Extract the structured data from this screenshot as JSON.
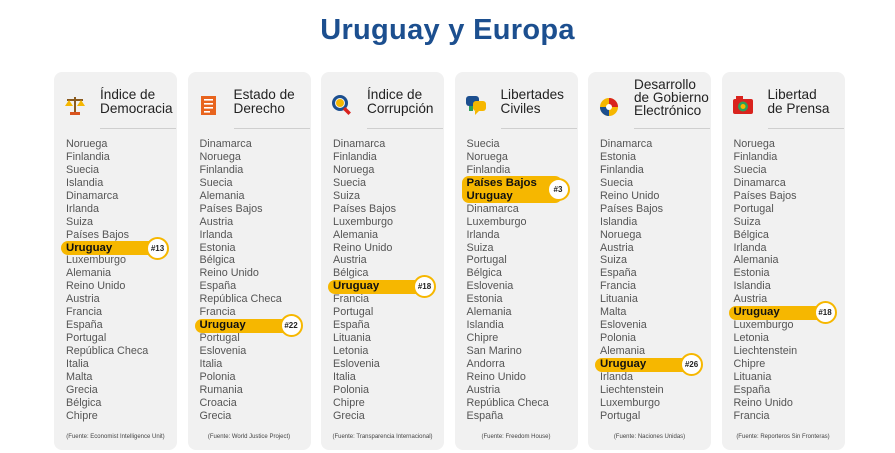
{
  "title": "Uruguay y Europa",
  "colors": {
    "title": "#1c4f8f",
    "highlight": "#f6b700",
    "card": "#f1f1f1"
  },
  "chart_data": {
    "type": "table",
    "title": "Uruguay y Europa",
    "columns": [
      {
        "heading": [
          "Índice de",
          "Democracia"
        ],
        "icon": "scale-icon",
        "rank": 13,
        "rank_label": "#13",
        "highlight": [
          "Uruguay"
        ],
        "items": [
          "Noruega",
          "Finlandia",
          "Suecia",
          "Islandia",
          "Dinamarca",
          "Irlanda",
          "Suiza",
          "Países Bajos",
          "Uruguay",
          "Luxemburgo",
          "Alemania",
          "Reino Unido",
          "Austria",
          "Francia",
          "España",
          "Portugal",
          "República Checa",
          "Italia",
          "Malta",
          "Grecia",
          "Bélgica",
          "Chipre"
        ],
        "source": "(Fuente: Economist Intelligence Unit)"
      },
      {
        "heading": [
          "Estado de",
          "Derecho"
        ],
        "icon": "document-icon",
        "rank": 22,
        "rank_label": "#22",
        "highlight": [
          "Uruguay"
        ],
        "items": [
          "Dinamarca",
          "Noruega",
          "Finlandia",
          "Suecia",
          "Alemania",
          "Países Bajos",
          "Austria",
          "Irlanda",
          "Estonia",
          "Bélgica",
          "Reino Unido",
          "España",
          "República Checa",
          "Francia",
          "Uruguay",
          "Portugal",
          "Eslovenia",
          "Italia",
          "Polonia",
          "Rumania",
          "Croacia",
          "Grecia"
        ],
        "source": "(Fuente: World Justice Project)"
      },
      {
        "heading": [
          "Índice de",
          "Corrupción"
        ],
        "icon": "magnifier-icon",
        "rank": 18,
        "rank_label": "#18",
        "highlight": [
          "Uruguay"
        ],
        "items": [
          "Dinamarca",
          "Finlandia",
          "Noruega",
          "Suecia",
          "Suiza",
          "Países Bajos",
          "Luxemburgo",
          "Alemania",
          "Reino Unido",
          "Austria",
          "Bélgica",
          "Uruguay",
          "Francia",
          "Portugal",
          "España",
          "Lituania",
          "Letonia",
          "Eslovenia",
          "Italia",
          "Polonia",
          "Chipre",
          "Grecia"
        ],
        "source": "(Fuente: Transparencia Internacional)"
      },
      {
        "heading": [
          "Libertades",
          "Civiles"
        ],
        "icon": "speech-bubbles-icon",
        "rank": 3,
        "rank_label": "#3",
        "highlight": [
          "Países Bajos",
          "Uruguay"
        ],
        "items": [
          "Suecia",
          "Noruega",
          "Finlandia",
          "Países Bajos",
          "Uruguay",
          "Dinamarca",
          "Luxemburgo",
          "Irlanda",
          "Suiza",
          "Portugal",
          "Bélgica",
          "Eslovenia",
          "Estonia",
          "Alemania",
          "Islandia",
          "Chipre",
          "San Marino",
          "Andorra",
          "Reino Unido",
          "Austria",
          "República Checa",
          "España"
        ],
        "source": "(Fuente: Freedom House)"
      },
      {
        "heading": [
          "Desarrollo",
          "de Gobierno",
          "Electrónico"
        ],
        "icon": "globe-icon",
        "rank": 26,
        "rank_label": "#26",
        "highlight": [
          "Uruguay"
        ],
        "items": [
          "Dinamarca",
          "Estonia",
          "Finlandia",
          "Suecia",
          "Reino Unido",
          "Países Bajos",
          "Islandia",
          "Noruega",
          "Austria",
          "Suiza",
          "España",
          "Francia",
          "Lituania",
          "Malta",
          "Eslovenia",
          "Polonia",
          "Alemania",
          "Uruguay",
          "Irlanda",
          "Liechtenstein",
          "Luxemburgo",
          "Portugal"
        ],
        "source": "(Fuente: Naciones Unidas)"
      },
      {
        "heading": [
          "Libertad",
          "de Prensa"
        ],
        "icon": "camera-icon",
        "rank": 18,
        "rank_label": "#18",
        "highlight": [
          "Uruguay"
        ],
        "items": [
          "Noruega",
          "Finlandia",
          "Suecia",
          "Dinamarca",
          "Países Bajos",
          "Portugal",
          "Suiza",
          "Bélgica",
          "Irlanda",
          "Alemania",
          "Estonia",
          "Islandia",
          "Austria",
          "Uruguay",
          "Luxemburgo",
          "Letonia",
          "Liechtenstein",
          "Chipre",
          "Lituania",
          "España",
          "Reino Unido",
          "Francia"
        ],
        "source": "(Fuente: Reporteros Sin Fronteras)"
      }
    ]
  }
}
